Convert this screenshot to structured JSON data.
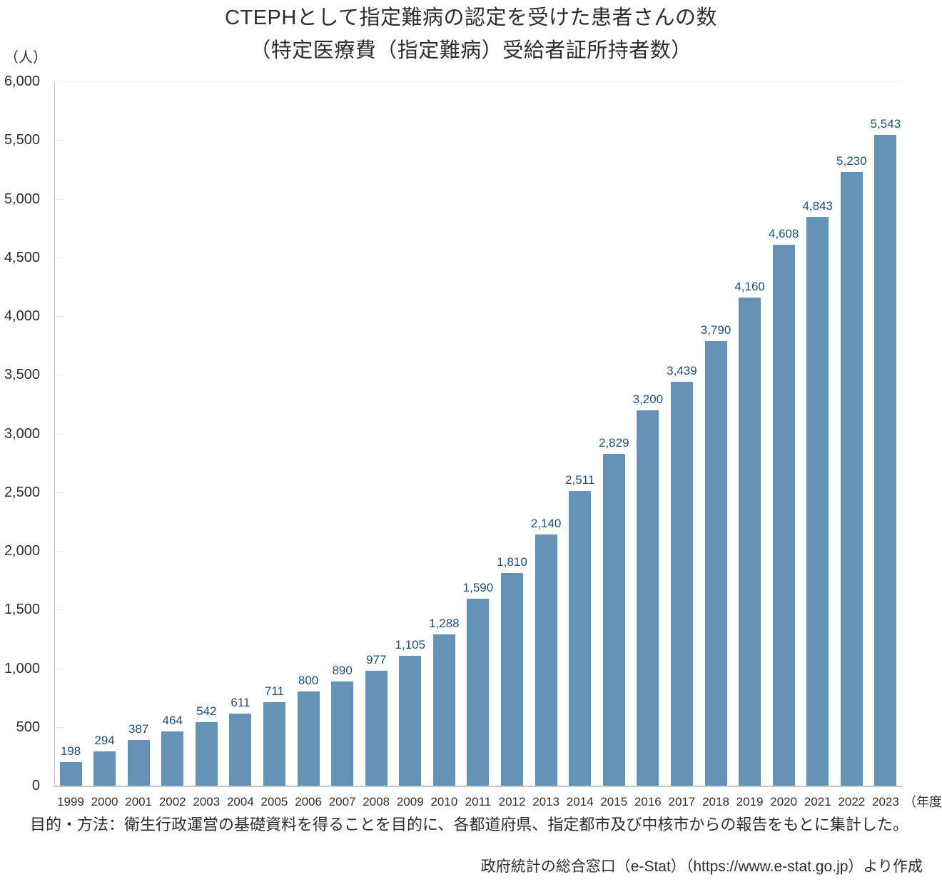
{
  "page": {
    "background_color": "#ffffff",
    "text_color": "#2e2e2e"
  },
  "chart_data": {
    "type": "bar",
    "title_line1": "CTEPHとして指定難病の認定を受けた患者さんの数",
    "title_line2": "（特定医療費（指定難病）受給者証所持者数）",
    "y_unit_label": "（人）",
    "x_unit_label": "（年度）",
    "categories": [
      "1999",
      "2000",
      "2001",
      "2002",
      "2003",
      "2004",
      "2005",
      "2006",
      "2007",
      "2008",
      "2009",
      "2010",
      "2011",
      "2012",
      "2013",
      "2014",
      "2015",
      "2016",
      "2017",
      "2018",
      "2019",
      "2020",
      "2021",
      "2022",
      "2023"
    ],
    "values": [
      198,
      294,
      387,
      464,
      542,
      611,
      711,
      800,
      890,
      977,
      1105,
      1288,
      1590,
      1810,
      2140,
      2511,
      2829,
      3200,
      3439,
      3790,
      4160,
      4608,
      4843,
      5230,
      5543
    ],
    "ylim": [
      0,
      6000
    ],
    "ytick_step": 500,
    "grid": "off",
    "legend": "none",
    "bar_color": "#6493b5",
    "value_label_color": "#1d4f7e",
    "axis_color": "#bdbdbd"
  },
  "footer": {
    "note": "目的・方法：衛生行政運営の基礎資料を得ることを目的に、各都道府県、指定都市及び中核市からの報告をもとに集計した。",
    "source": "政府統計の総合窓口（e-Stat）（https://www.e-stat.go.jp）より作成"
  }
}
